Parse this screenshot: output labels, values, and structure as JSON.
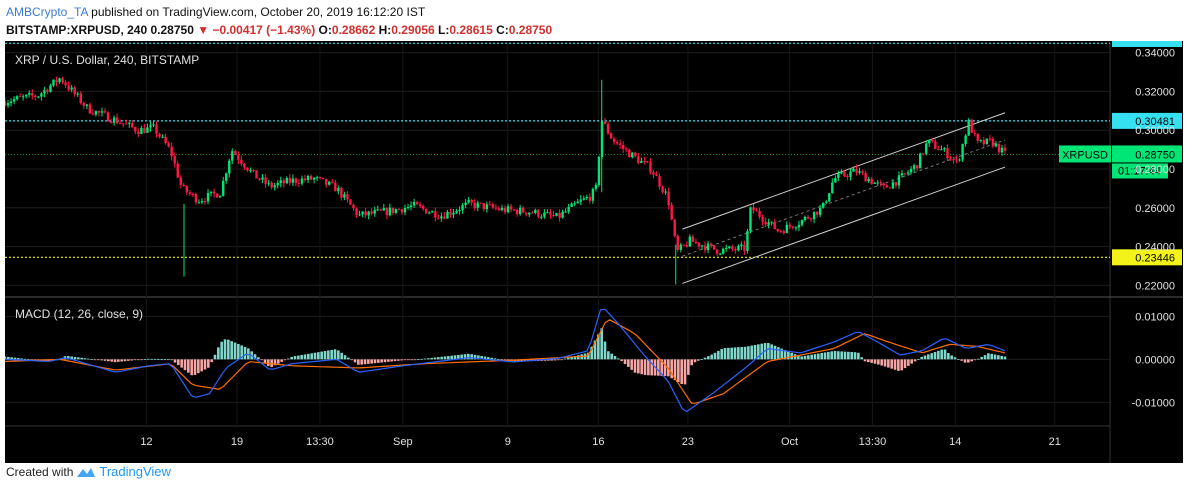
{
  "header": {
    "author": "AMBCrypto_TA",
    "published": "published on TradingView.com, October 20, 2019 16:12:20 IST",
    "symbol": "BITSTAMP:XRPUSD, 240",
    "last": "0.28750",
    "change": "−0.00417 (−1.43%)",
    "o_label": "O:",
    "o": "0.28662",
    "h_label": "H:",
    "h": "0.29056",
    "l_label": "L:",
    "l": "0.28615",
    "c_label": "C:",
    "c": "0.28750"
  },
  "footer": {
    "created_with": "Created with",
    "brand": "TradingView"
  },
  "colors": {
    "up": "#00e676",
    "down": "#ff1744",
    "background": "#000000",
    "cyan_line": "#35e1f0",
    "yellow_line": "#f3f31a",
    "macd_line": "#2962ff",
    "signal_line": "#ff6d00",
    "hist_pos": "#7fd8cb",
    "hist_neg": "#f7a5a5"
  },
  "chart_data": [
    {
      "type": "candlestick",
      "title": "XRP / U.S. Dollar, 240, BITSTAMP",
      "ylim": [
        0.214,
        0.346
      ],
      "ytick_labels": [
        "0.34000",
        "0.32000",
        "0.30000",
        "0.28000",
        "0.26000",
        "0.24000",
        "0.22000"
      ],
      "yticks": [
        0.34,
        0.32,
        0.3,
        0.28,
        0.26,
        0.24,
        0.22
      ],
      "x_ticks": [
        "12",
        "19",
        "13:30",
        "Sep",
        "9",
        "16",
        "23",
        "Oct",
        "13:30",
        "14",
        "21"
      ],
      "horizontal_levels": [
        {
          "value": 0.30481,
          "label": "0.30481",
          "color": "cyan"
        },
        {
          "value": 0.23446,
          "label": "0.23446",
          "color": "yellow"
        },
        {
          "value": 0.3448,
          "label": "",
          "color": "cyan"
        }
      ],
      "price_badge": {
        "symbol": "XRPUSD",
        "value": 0.2875,
        "label": "0.28750",
        "countdown": "01:17:44"
      },
      "channel": {
        "start": {
          "t": 0.613,
          "upper": 0.249,
          "lower": 0.221
        },
        "end": {
          "t": 0.905,
          "upper": 0.309,
          "lower": 0.281
        }
      },
      "close_path": [
        [
          0.0,
          0.315
        ],
        [
          0.03,
          0.318
        ],
        [
          0.05,
          0.327
        ],
        [
          0.075,
          0.311
        ],
        [
          0.105,
          0.304
        ],
        [
          0.12,
          0.3
        ],
        [
          0.135,
          0.301
        ],
        [
          0.15,
          0.289
        ],
        [
          0.16,
          0.27
        ],
        [
          0.175,
          0.264
        ],
        [
          0.195,
          0.268
        ],
        [
          0.205,
          0.29
        ],
        [
          0.225,
          0.277
        ],
        [
          0.24,
          0.271
        ],
        [
          0.26,
          0.274
        ],
        [
          0.28,
          0.275
        ],
        [
          0.3,
          0.27
        ],
        [
          0.32,
          0.256
        ],
        [
          0.345,
          0.258
        ],
        [
          0.37,
          0.261
        ],
        [
          0.395,
          0.256
        ],
        [
          0.42,
          0.262
        ],
        [
          0.45,
          0.259
        ],
        [
          0.475,
          0.258
        ],
        [
          0.5,
          0.255
        ],
        [
          0.52,
          0.263
        ],
        [
          0.53,
          0.266
        ],
        [
          0.535,
          0.27
        ],
        [
          0.54,
          0.305
        ],
        [
          0.55,
          0.295
        ],
        [
          0.565,
          0.288
        ],
        [
          0.585,
          0.28
        ],
        [
          0.6,
          0.265
        ],
        [
          0.608,
          0.237
        ],
        [
          0.62,
          0.243
        ],
        [
          0.645,
          0.238
        ],
        [
          0.67,
          0.239
        ],
        [
          0.675,
          0.26
        ],
        [
          0.7,
          0.248
        ],
        [
          0.72,
          0.253
        ],
        [
          0.74,
          0.26
        ],
        [
          0.75,
          0.275
        ],
        [
          0.77,
          0.279
        ],
        [
          0.795,
          0.27
        ],
        [
          0.81,
          0.275
        ],
        [
          0.825,
          0.282
        ],
        [
          0.835,
          0.294
        ],
        [
          0.85,
          0.289
        ],
        [
          0.862,
          0.283
        ],
        [
          0.872,
          0.304
        ],
        [
          0.88,
          0.293
        ],
        [
          0.893,
          0.294
        ],
        [
          0.905,
          0.2875
        ]
      ],
      "extra_wicks": [
        {
          "t": 0.162,
          "high": 0.262,
          "low": 0.2245
        },
        {
          "t": 0.54,
          "high": 0.326,
          "low": 0.268
        },
        {
          "t": 0.607,
          "high": 0.241,
          "low": 0.2205
        }
      ]
    },
    {
      "type": "macd",
      "title": "MACD (12, 26, close, 9)",
      "ylim": [
        -0.0155,
        0.0145
      ],
      "yticks": [
        0.01,
        0.0,
        -0.01
      ],
      "ytick_labels": [
        "0.01000",
        "0.00000",
        "-0.01000"
      ],
      "macd_path": [
        [
          0.0,
          0.0
        ],
        [
          0.04,
          -0.0005
        ],
        [
          0.055,
          0.0004
        ],
        [
          0.1,
          -0.003
        ],
        [
          0.13,
          -0.0015
        ],
        [
          0.15,
          -0.001
        ],
        [
          0.17,
          -0.009
        ],
        [
          0.185,
          -0.008
        ],
        [
          0.2,
          -0.002
        ],
        [
          0.22,
          0.0015
        ],
        [
          0.24,
          -0.0025
        ],
        [
          0.26,
          -0.001
        ],
        [
          0.3,
          0.0
        ],
        [
          0.32,
          -0.003
        ],
        [
          0.36,
          -0.0015
        ],
        [
          0.42,
          0.0004
        ],
        [
          0.46,
          -0.0006
        ],
        [
          0.5,
          0.0002
        ],
        [
          0.528,
          0.002
        ],
        [
          0.54,
          0.0125
        ],
        [
          0.556,
          0.008
        ],
        [
          0.58,
          0.0005
        ],
        [
          0.6,
          -0.005
        ],
        [
          0.615,
          -0.0125
        ],
        [
          0.64,
          -0.008
        ],
        [
          0.67,
          -0.002
        ],
        [
          0.69,
          0.0025
        ],
        [
          0.72,
          0.0015
        ],
        [
          0.75,
          0.004
        ],
        [
          0.772,
          0.0065
        ],
        [
          0.79,
          0.004
        ],
        [
          0.81,
          0.001
        ],
        [
          0.83,
          0.002
        ],
        [
          0.85,
          0.005
        ],
        [
          0.87,
          0.0025
        ],
        [
          0.89,
          0.0035
        ],
        [
          0.905,
          0.002
        ]
      ],
      "signal_path": [
        [
          0.0,
          -0.0005
        ],
        [
          0.05,
          0.0
        ],
        [
          0.1,
          -0.0025
        ],
        [
          0.15,
          -0.001
        ],
        [
          0.17,
          -0.006
        ],
        [
          0.195,
          -0.007
        ],
        [
          0.22,
          -0.0005
        ],
        [
          0.26,
          -0.0015
        ],
        [
          0.32,
          -0.002
        ],
        [
          0.38,
          -0.001
        ],
        [
          0.46,
          -0.0002
        ],
        [
          0.528,
          0.0008
        ],
        [
          0.545,
          0.0095
        ],
        [
          0.57,
          0.006
        ],
        [
          0.6,
          -0.002
        ],
        [
          0.622,
          -0.0105
        ],
        [
          0.65,
          -0.008
        ],
        [
          0.69,
          -0.0005
        ],
        [
          0.75,
          0.0025
        ],
        [
          0.778,
          0.006
        ],
        [
          0.8,
          0.004
        ],
        [
          0.83,
          0.0015
        ],
        [
          0.855,
          0.0035
        ],
        [
          0.88,
          0.003
        ],
        [
          0.905,
          0.0015
        ]
      ]
    }
  ]
}
